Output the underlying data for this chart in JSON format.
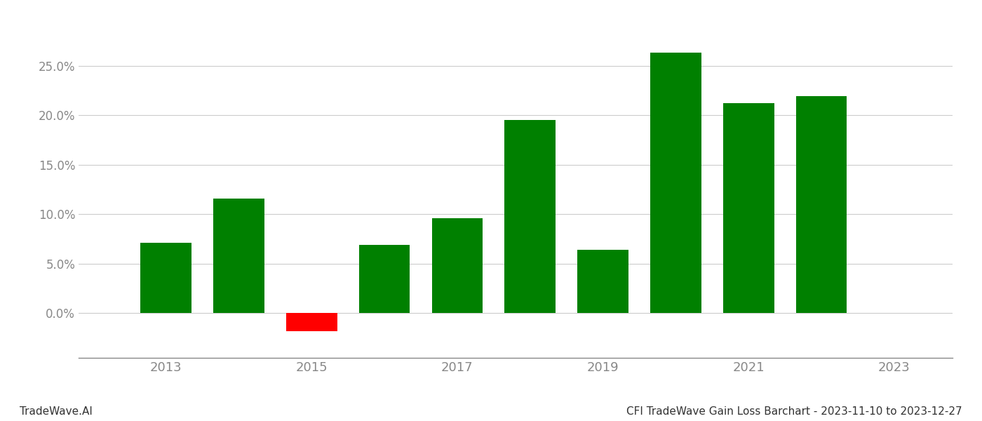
{
  "years": [
    2013,
    2014,
    2015,
    2016,
    2017,
    2018,
    2019,
    2020,
    2021,
    2022
  ],
  "values": [
    0.071,
    0.116,
    -0.018,
    0.069,
    0.096,
    0.195,
    0.064,
    0.263,
    0.212,
    0.219
  ],
  "colors": [
    "#008000",
    "#008000",
    "#ff0000",
    "#008000",
    "#008000",
    "#008000",
    "#008000",
    "#008000",
    "#008000",
    "#008000"
  ],
  "bar_width": 0.7,
  "xlim": [
    2011.8,
    2023.8
  ],
  "ylim": [
    -0.045,
    0.295
  ],
  "yticks": [
    0.0,
    0.05,
    0.1,
    0.15,
    0.2,
    0.25
  ],
  "xticks": [
    2013,
    2015,
    2017,
    2019,
    2021,
    2023
  ],
  "grid_color": "#cccccc",
  "axis_color": "#888888",
  "tick_color": "#888888",
  "footer_left": "TradeWave.AI",
  "footer_right": "CFI TradeWave Gain Loss Barchart - 2023-11-10 to 2023-12-27",
  "background_color": "#ffffff"
}
